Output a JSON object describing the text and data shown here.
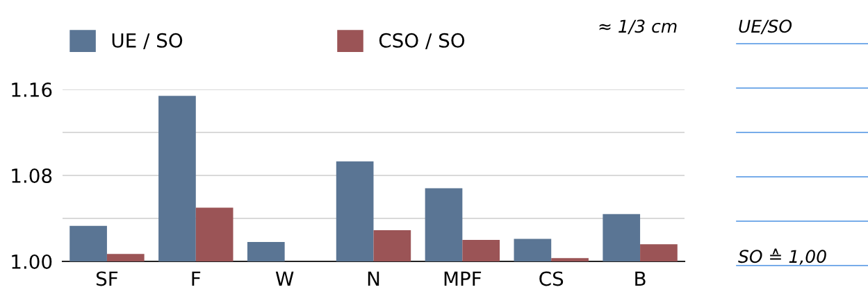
{
  "chart_data": {
    "type": "bar",
    "categories": [
      "SF",
      "F",
      "W",
      "N",
      "MPF",
      "CS",
      "B"
    ],
    "series": [
      {
        "name": "UE / SO",
        "color": "#5a7594",
        "values": [
          1.033,
          1.154,
          1.018,
          1.093,
          1.068,
          1.021,
          1.044
        ]
      },
      {
        "name": "CSO / SO",
        "color": "#9b5456",
        "values": [
          1.007,
          1.05,
          null,
          1.029,
          1.02,
          1.003,
          1.016
        ]
      }
    ],
    "ylim": [
      1.0,
      1.16
    ],
    "yticks": [
      {
        "value": 1.0,
        "label": "1.00"
      },
      {
        "value": 1.04,
        "label": null
      },
      {
        "value": 1.08,
        "label": "1.08"
      },
      {
        "value": 1.12,
        "label": null
      },
      {
        "value": 1.16,
        "label": "1.16"
      }
    ],
    "grid": "y",
    "legend": "top",
    "annotations": [
      "≈ 1/3 cm",
      "UE/SO",
      "SO ≙ 1,00"
    ]
  }
}
